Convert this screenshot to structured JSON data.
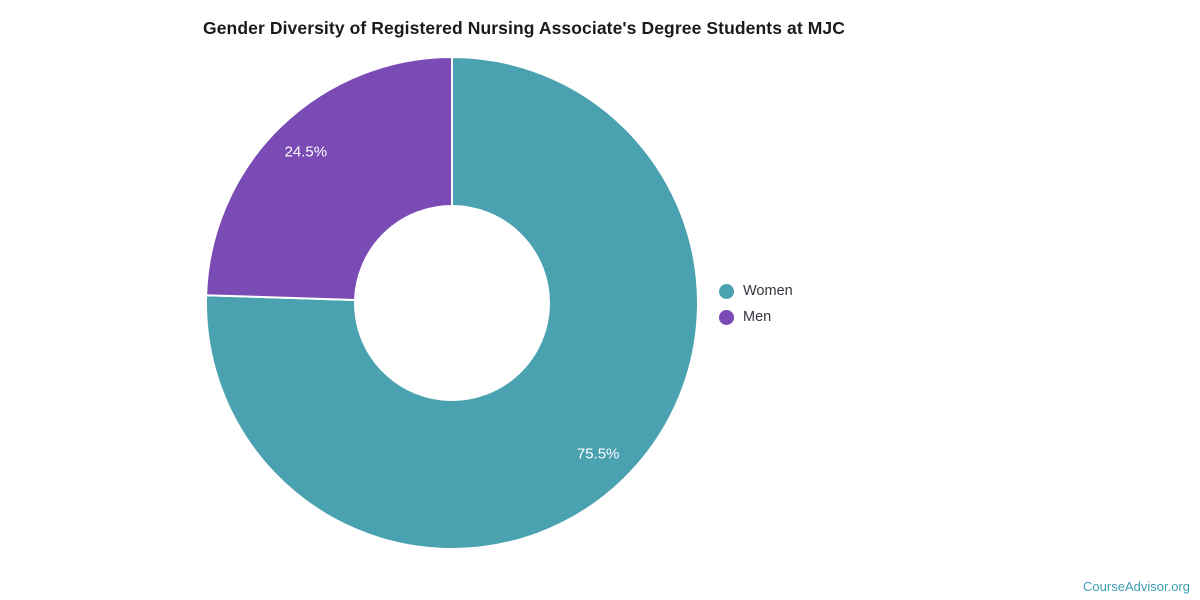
{
  "title": "Gender Diversity of Registered Nursing Associate's Degree Students at MJC",
  "watermark": "CourseAdvisor.org",
  "colors": {
    "women": "#4AA1AF",
    "men": "#7A4BB5",
    "watermark_text": "#3D9EB5",
    "title_text": "#1B1B1B",
    "slice_label_text": "#FFFFFF",
    "slice_separator": "#FFFFFF"
  },
  "legend": {
    "position": "right",
    "items": [
      {
        "label": "Women",
        "color": "#4AA1AF"
      },
      {
        "label": "Men",
        "color": "#7A4BB5"
      }
    ]
  },
  "chart_data": {
    "type": "pie",
    "subtype": "donut",
    "title": "Gender Diversity of Registered Nursing Associate's Degree Students at MJC",
    "labels": [
      "Women",
      "Men"
    ],
    "values": [
      75.5,
      24.5
    ],
    "value_labels": [
      "75.5%",
      "24.5%"
    ],
    "colors": [
      "#4AA1AF",
      "#7A4BB5"
    ],
    "unit": "%",
    "start_angle_deg": 0,
    "direction": "clockwise",
    "legend_position": "right",
    "grid": false,
    "background": "#FFFFFF"
  }
}
